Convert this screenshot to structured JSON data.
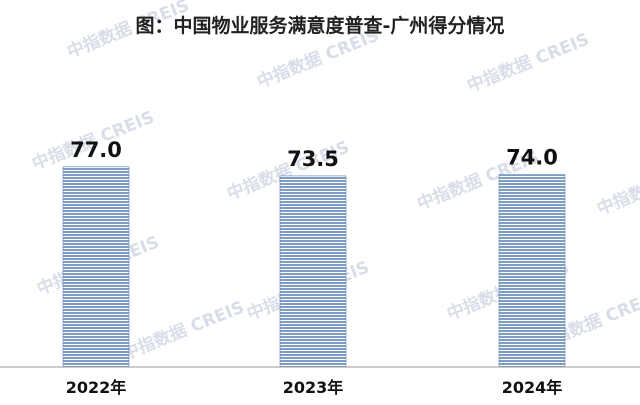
{
  "watermark": "中指数据 CREIS",
  "colors": {
    "bar_fill": "#7f9cc4",
    "bar_stripe": "#ffffff",
    "bar_edge": "#5f7fab",
    "axis": "#9a9a9a"
  },
  "chart_data": {
    "type": "bar",
    "title": "图：中国物业服务满意度普查-广州得分情况",
    "categories": [
      "2022年",
      "2023年",
      "2024年"
    ],
    "values": [
      77.0,
      73.5,
      74.0
    ],
    "value_labels": [
      "77.0",
      "73.5",
      "74.0"
    ],
    "ylim": [
      0,
      100
    ],
    "grid": false,
    "legend": "none"
  }
}
